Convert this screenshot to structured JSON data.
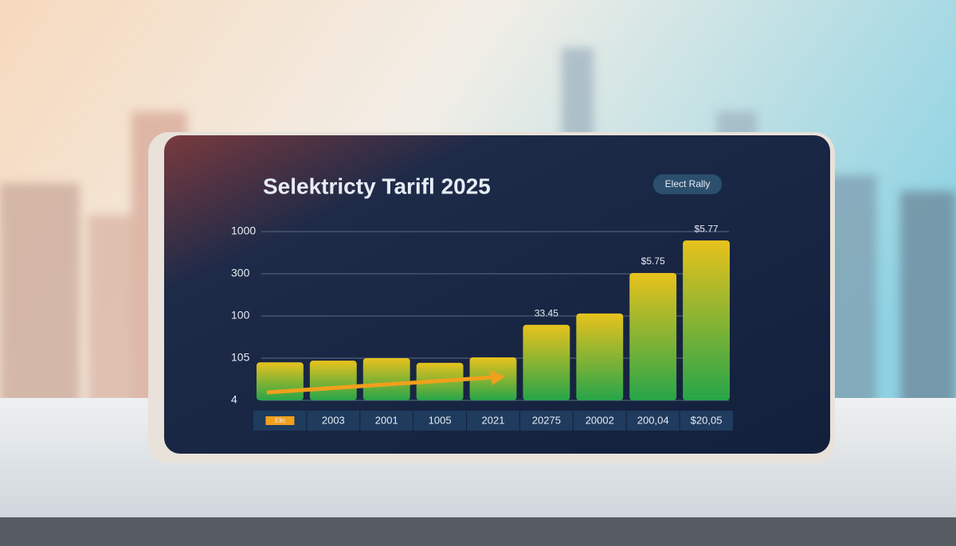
{
  "chart_data": {
    "type": "bar",
    "title": "Selektricty Tarifl 2025",
    "button": "Elect Rally",
    "categories": [
      "Elki",
      "2003",
      "2001",
      "1005",
      "2021",
      "20275",
      "20002",
      "200,04",
      "$20,05"
    ],
    "values": [
      0.9,
      0.94,
      1.0,
      0.89,
      1.02,
      1.79,
      2.06,
      3.02,
      3.79
    ],
    "annotations": [
      "33.45",
      "$5.75",
      "$5.77"
    ],
    "ylim": [
      0,
      4.3
    ],
    "yticks": [
      {
        "value": 0,
        "label": "4"
      },
      {
        "value": 1,
        "label": "105"
      },
      {
        "value": 2,
        "label": "100"
      },
      {
        "value": 3,
        "label": "300"
      },
      {
        "value": 4,
        "label": "1000"
      }
    ],
    "grid": true,
    "color_top": "#e8c21c",
    "color_bottom": "#27a54a"
  }
}
